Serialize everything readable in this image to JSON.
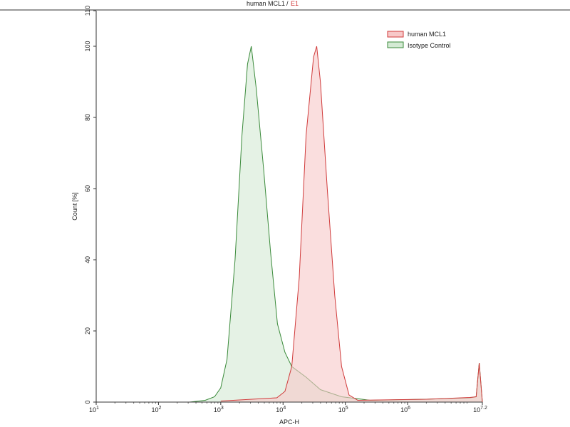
{
  "chart_data": {
    "type": "area",
    "title": "human MCL1",
    "title_suffix": "E1",
    "title_separator": "/",
    "xlabel": "APC-H",
    "ylabel": "Count [%]",
    "xscale": "log",
    "xlim": [
      10,
      15848932
    ],
    "ylim": [
      0,
      110
    ],
    "x_tick_exponents": [
      "1",
      "2",
      "3",
      "4",
      "5",
      "6",
      "7.2"
    ],
    "y_ticks": [
      0,
      20,
      40,
      60,
      80,
      100,
      110
    ],
    "grid": false,
    "legend_position": "top-right",
    "series": [
      {
        "name": "human MCL1",
        "line_color": "#d03a3a",
        "fill_color": "#f7c8c8",
        "x": [
          1000,
          7943,
          10715,
          13804,
          18197,
          23442,
          30903,
          34674,
          39811,
          51286,
          67608,
          87096,
          114815,
          158489,
          1995262,
          10000000,
          12589254,
          14125375,
          15848932
        ],
        "y": [
          0.3,
          1.2,
          3,
          10,
          35,
          75,
          97,
          100,
          90,
          60,
          30,
          10,
          2,
          0.5,
          0.8,
          1.3,
          1.5,
          11,
          0
        ]
      },
      {
        "name": "Isotype Control",
        "line_color": "#3a8a3a",
        "fill_color": "#d4ead4",
        "x": [
          316,
          562,
          794,
          1000,
          1259,
          1698,
          2188,
          2692,
          3090,
          3715,
          4898,
          6310,
          8128,
          10715,
          13804,
          23442,
          39811,
          87096,
          251189,
          1995262,
          10000000,
          12589254,
          14125375,
          15848932
        ],
        "y": [
          0,
          0.5,
          1.5,
          4,
          12,
          40,
          75,
          95,
          100,
          88,
          65,
          42,
          22,
          14,
          10,
          7,
          3.5,
          1.5,
          0.5,
          0.8,
          1.2,
          1.5,
          11,
          0
        ]
      }
    ]
  }
}
